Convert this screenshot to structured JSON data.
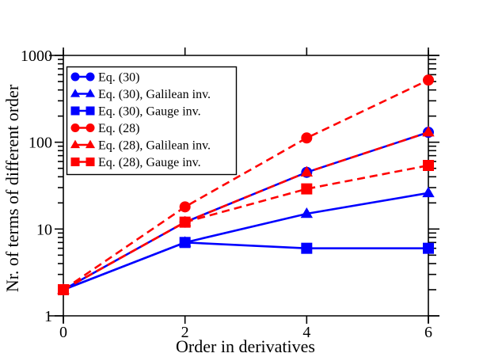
{
  "chart_data": {
    "type": "line",
    "title": "",
    "xlabel": "Order in derivatives",
    "ylabel": "Nr. of terms of different order",
    "xscale": "linear",
    "yscale": "log",
    "xlim": [
      0,
      6
    ],
    "ylim": [
      1,
      1000
    ],
    "xticks": [
      0,
      2,
      4,
      6
    ],
    "xtick_labels": [
      "0",
      "2",
      "4",
      "6"
    ],
    "yticks": [
      1,
      10,
      100,
      1000
    ],
    "ytick_labels": [
      "1",
      "10",
      "100",
      "1000"
    ],
    "grid": false,
    "legend_position": "top-left",
    "x": [
      0,
      2,
      4,
      6
    ],
    "series": [
      {
        "name": "Eq. (30)",
        "values": [
          2,
          12,
          45,
          130
        ],
        "color": "#0000ff",
        "marker": "circle",
        "linestyle": "solid"
      },
      {
        "name": "Eq. (30), Galilean inv.",
        "values": [
          2,
          7,
          15,
          26
        ],
        "color": "#0000ff",
        "marker": "triangle",
        "linestyle": "solid"
      },
      {
        "name": "Eq. (30), Gauge inv.",
        "values": [
          2,
          7,
          6,
          6
        ],
        "color": "#0000ff",
        "marker": "square",
        "linestyle": "solid"
      },
      {
        "name": "Eq. (28)",
        "values": [
          2,
          18,
          112,
          520
        ],
        "color": "#ff0000",
        "marker": "circle",
        "linestyle": "dashed"
      },
      {
        "name": "Eq. (28), Galilean inv.",
        "values": [
          2,
          12,
          45,
          130
        ],
        "color": "#ff0000",
        "marker": "triangle",
        "linestyle": "dashed"
      },
      {
        "name": "Eq. (28), Gauge inv.",
        "values": [
          2,
          12,
          29,
          54
        ],
        "color": "#ff0000",
        "marker": "square",
        "linestyle": "dashed"
      }
    ]
  }
}
